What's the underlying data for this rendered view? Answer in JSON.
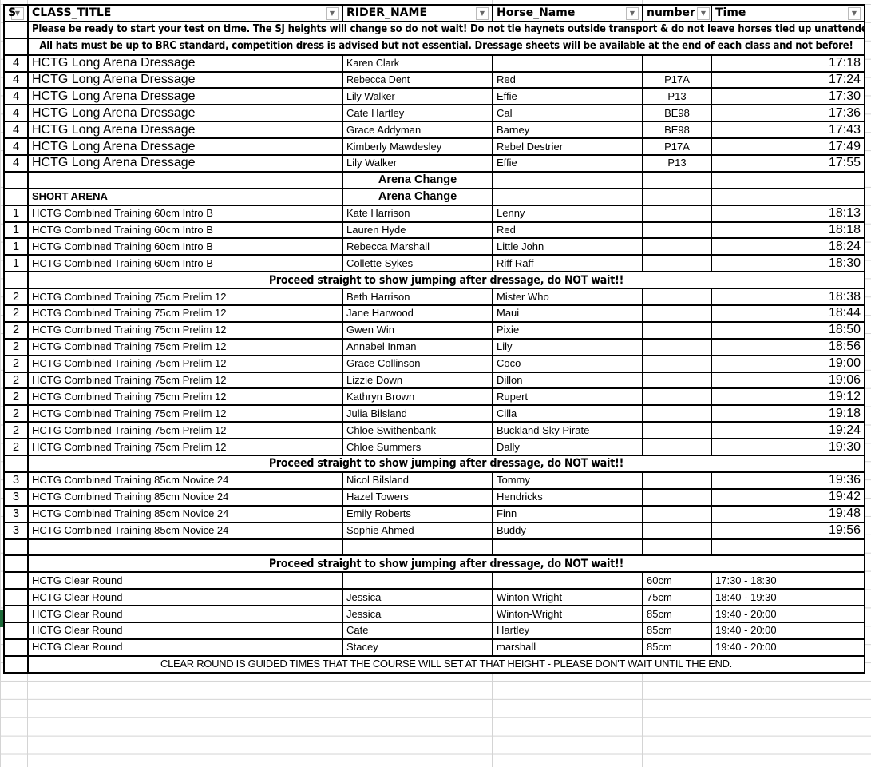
{
  "headers": [
    "S",
    "CLASS_TITLE",
    "RIDER_NAME",
    "Horse_Name",
    "number",
    "Time"
  ],
  "filter_icon": "dropdown-arrow-icon",
  "accent_color": "#1e6b3a",
  "rows": [
    {
      "type": "note",
      "text": "Please be ready to start your test on time. The SJ heights will change so do not wait! Do not tie haynets outside transport & do not leave horses tied up unattended."
    },
    {
      "type": "note",
      "text": "All hats must be up to BRC standard, competition dress is advised but not essential. Dressage sheets will be available at the end of each class and not before!"
    },
    {
      "type": "entry",
      "s": "4",
      "class_title": "HCTG Long Arena Dressage",
      "rider": "Karen Clark",
      "horse": "",
      "number": "",
      "time": "17:18"
    },
    {
      "type": "entry",
      "s": "4",
      "class_title": "HCTG Long Arena Dressage",
      "rider": "Rebecca Dent",
      "horse": "Red",
      "number": "P17A",
      "time": "17:24"
    },
    {
      "type": "entry",
      "s": "4",
      "class_title": "HCTG Long Arena Dressage",
      "rider": "Lily Walker",
      "horse": "Effie",
      "number": "P13",
      "time": "17:30"
    },
    {
      "type": "entry",
      "s": "4",
      "class_title": "HCTG Long Arena Dressage",
      "rider": "Cate Hartley",
      "horse": " Cal",
      "number": "BE98",
      "time": "17:36"
    },
    {
      "type": "entry",
      "s": "4",
      "class_title": "HCTG Long Arena Dressage",
      "rider": "Grace Addyman",
      "horse": "Barney",
      "number": "BE98",
      "time": "17:43"
    },
    {
      "type": "entry",
      "s": "4",
      "class_title": "HCTG Long Arena Dressage",
      "rider": "Kimberly  Mawdesley",
      "horse": "Rebel Destrier",
      "number": "P17A",
      "time": "17:49"
    },
    {
      "type": "entry",
      "s": "4",
      "class_title": "HCTG Long Arena Dressage",
      "rider": "Lily Walker",
      "horse": "Effie",
      "number": "P13",
      "time": "17:55"
    },
    {
      "type": "arena",
      "class_title": "",
      "rider": "Arena Change"
    },
    {
      "type": "arena",
      "class_title": "SHORT ARENA",
      "rider": "Arena Change"
    },
    {
      "type": "entry",
      "s": "1",
      "class_title": "HCTG Combined Training 60cm Intro B",
      "rider": "Kate Harrison",
      "horse": "Lenny",
      "number": "",
      "time": "18:13"
    },
    {
      "type": "entry",
      "s": "1",
      "class_title": "HCTG Combined Training 60cm Intro B",
      "rider": "Lauren Hyde",
      "horse": "Red",
      "number": "",
      "time": "18:18"
    },
    {
      "type": "entry",
      "s": "1",
      "class_title": "HCTG Combined Training 60cm Intro B",
      "rider": "Rebecca  Marshall",
      "horse": "Little John",
      "number": "",
      "time": "18:24"
    },
    {
      "type": "entry",
      "s": "1",
      "class_title": "HCTG Combined Training 60cm Intro B",
      "rider": "Collette Sykes",
      "horse": "Riff Raff",
      "number": "",
      "time": "18:30"
    },
    {
      "type": "proceed",
      "text": "Proceed straight to show jumping after dressage, do NOT wait!!"
    },
    {
      "type": "entry",
      "s": "2",
      "class_title": "HCTG Combined Training 75cm Prelim 12",
      "rider": "Beth Harrison",
      "horse": "Mister Who",
      "number": "",
      "time": "18:38"
    },
    {
      "type": "entry",
      "s": "2",
      "class_title": "HCTG Combined Training 75cm Prelim 12",
      "rider": "Jane Harwood",
      "horse": "Maui",
      "number": "",
      "time": "18:44"
    },
    {
      "type": "entry",
      "s": "2",
      "class_title": "HCTG Combined Training 75cm Prelim 12",
      "rider": "Gwen  Win",
      "horse": "Pixie",
      "number": "",
      "time": "18:50"
    },
    {
      "type": "entry",
      "s": "2",
      "class_title": "HCTG Combined Training 75cm Prelim 12",
      "rider": "Annabel  Inman",
      "horse": "Lily",
      "number": "",
      "time": "18:56"
    },
    {
      "type": "entry",
      "s": "2",
      "class_title": "HCTG Combined Training 75cm Prelim 12",
      "rider": "Grace Collinson",
      "horse": "Coco",
      "number": "",
      "time": "19:00"
    },
    {
      "type": "entry",
      "s": "2",
      "class_title": "HCTG Combined Training 75cm Prelim 12",
      "rider": "Lizzie Down",
      "horse": "Dillon",
      "number": "",
      "time": "19:06"
    },
    {
      "type": "entry",
      "s": "2",
      "class_title": "HCTG Combined Training 75cm Prelim 12",
      "rider": "Kathryn  Brown",
      "horse": "Rupert",
      "number": "",
      "time": "19:12"
    },
    {
      "type": "entry",
      "s": "2",
      "class_title": "HCTG Combined Training 75cm Prelim 12",
      "rider": "Julia Bilsland",
      "horse": "Cilla",
      "number": "",
      "time": "19:18"
    },
    {
      "type": "entry",
      "s": "2",
      "class_title": "HCTG Combined Training 75cm Prelim 12",
      "rider": "Chloe Swithenbank",
      "horse": "Buckland Sky Pirate",
      "number": "",
      "time": "19:24"
    },
    {
      "type": "entry",
      "s": "2",
      "class_title": "HCTG Combined Training 75cm Prelim 12",
      "rider": "Chloe Summers",
      "horse": "Dally",
      "number": "",
      "time": "19:30"
    },
    {
      "type": "proceed",
      "text": "Proceed straight to show jumping after dressage, do NOT wait!!"
    },
    {
      "type": "entry",
      "s": "3",
      "class_title": "HCTG Combined Training 85cm Novice 24",
      "rider": "Nicol Bilsland",
      "horse": "Tommy",
      "number": "",
      "time": "19:36"
    },
    {
      "type": "entry",
      "s": "3",
      "class_title": "HCTG Combined Training 85cm Novice 24",
      "rider": "Hazel Towers",
      "horse": "Hendricks",
      "number": "",
      "time": "19:42"
    },
    {
      "type": "entry",
      "s": "3",
      "class_title": "HCTG Combined Training 85cm Novice 24",
      "rider": "Emily Roberts",
      "horse": "Finn",
      "number": "",
      "time": "19:48"
    },
    {
      "type": "entry",
      "s": "3",
      "class_title": "HCTG Combined Training 85cm Novice 24",
      "rider": "Sophie Ahmed",
      "horse": "Buddy",
      "number": "",
      "time": "19:56"
    },
    {
      "type": "blank"
    },
    {
      "type": "proceed",
      "text": "Proceed straight to show jumping after dressage, do NOT wait!!"
    },
    {
      "type": "clear",
      "s": "",
      "class_title": "HCTG Clear Round",
      "rider": "",
      "horse": "",
      "number": "60cm",
      "time": "17:30 - 18:30"
    },
    {
      "type": "clear",
      "s": "",
      "class_title": "HCTG Clear Round",
      "rider": "Jessica",
      "horse": "Winton-Wright",
      "number": "75cm",
      "time": "18:40 - 19:30"
    },
    {
      "type": "clear",
      "s": "",
      "class_title": "HCTG Clear Round",
      "rider": "Jessica",
      "horse": "Winton-Wright",
      "number": "85cm",
      "time": "19:40 - 20:00"
    },
    {
      "type": "clear",
      "s": "",
      "class_title": "HCTG Clear Round",
      "rider": "Cate",
      "horse": "Hartley",
      "number": "85cm",
      "time": "19:40 - 20:00"
    },
    {
      "type": "clear",
      "s": "",
      "class_title": "HCTG Clear Round",
      "rider": "Stacey",
      "horse": "marshall",
      "number": "85cm",
      "time": "19:40 - 20:00"
    },
    {
      "type": "caps",
      "text": "CLEAR ROUND IS GUIDED TIMES THAT THE COURSE WILL SET AT THAT HEIGHT - PLEASE DON'T WAIT UNTIL THE END."
    }
  ]
}
